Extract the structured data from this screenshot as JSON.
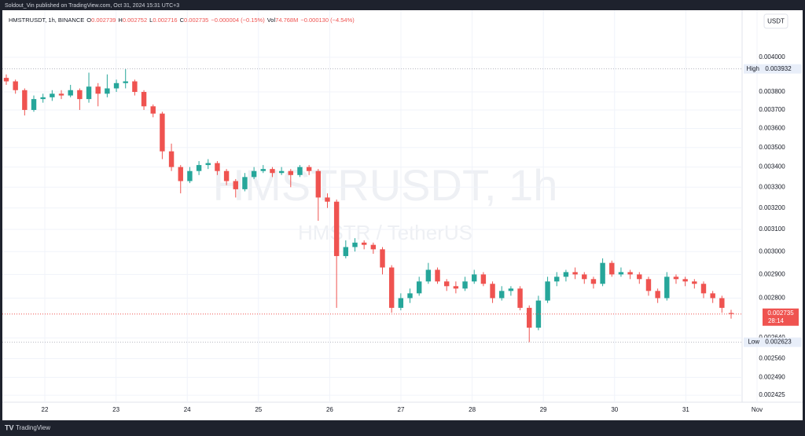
{
  "header": {
    "publisher": "Soldout_Vin published on TradingView.com, Oct 31, 2024 15:31 UTC+3",
    "currency_button": "USDT",
    "footer_logo": "TradingView"
  },
  "chart_data": {
    "type": "candlestick",
    "legend": {
      "symbol": "HMSTRUSDT, 1h, BINANCE",
      "items": [
        {
          "key": "O",
          "value": "0.002739"
        },
        {
          "key": "H",
          "value": "0.002752"
        },
        {
          "key": "L",
          "value": "0.002716"
        },
        {
          "key": "C",
          "value": "0.002735"
        }
      ],
      "change": "−0.000004 (−0.15%)",
      "volume_key": "Vol",
      "volume": "74.768M",
      "volume_change": "−0.000130 (−4.54%)"
    },
    "watermark": {
      "title": "HMSTRUSDT, 1h",
      "subtitle": "HMSTR / TetherUS"
    },
    "up_color": "#26a69a",
    "down_color": "#ef5350",
    "log_scale": true,
    "grid": true,
    "ylim": [
      0.0024,
      0.0042
    ],
    "yticks": [
      {
        "value": 0.004,
        "label": "0.004000"
      },
      {
        "value": 0.0038,
        "label": "0.003800"
      },
      {
        "value": 0.0037,
        "label": "0.003700"
      },
      {
        "value": 0.0036,
        "label": "0.003600"
      },
      {
        "value": 0.0035,
        "label": "0.003500"
      },
      {
        "value": 0.0034,
        "label": "0.003400"
      },
      {
        "value": 0.0033,
        "label": "0.003300"
      },
      {
        "value": 0.0032,
        "label": "0.003200"
      },
      {
        "value": 0.0031,
        "label": "0.003100"
      },
      {
        "value": 0.003,
        "label": "0.003000"
      },
      {
        "value": 0.0029,
        "label": "0.002900"
      },
      {
        "value": 0.0028,
        "label": "0.002800"
      },
      {
        "value": 0.00264,
        "label": "0.002640"
      },
      {
        "value": 0.00256,
        "label": "0.002560"
      },
      {
        "value": 0.00249,
        "label": "0.002490"
      },
      {
        "value": 0.002425,
        "label": "0.002425"
      }
    ],
    "xtick_labels": [
      "22",
      "23",
      "24",
      "25",
      "26",
      "27",
      "28",
      "29",
      "30",
      "31",
      "Nov"
    ],
    "high": {
      "name": "High",
      "value": 0.003932,
      "label": "0.003932"
    },
    "low": {
      "name": "Low",
      "value": 0.002623,
      "label": "0.002623"
    },
    "last": {
      "value": 0.002735,
      "label": "0.002735",
      "countdown": "28:14"
    },
    "ohlc": [
      [
        0.00388,
        0.0039,
        0.00384,
        0.00386
      ],
      [
        0.00386,
        0.00387,
        0.00379,
        0.00381
      ],
      [
        0.00381,
        0.00382,
        0.00367,
        0.0037
      ],
      [
        0.0037,
        0.00378,
        0.00369,
        0.00376
      ],
      [
        0.00376,
        0.00379,
        0.00374,
        0.00377
      ],
      [
        0.00377,
        0.00381,
        0.00375,
        0.00379
      ],
      [
        0.00379,
        0.00381,
        0.00376,
        0.00378
      ],
      [
        0.00378,
        0.00384,
        0.00377,
        0.00381
      ],
      [
        0.00381,
        0.00382,
        0.0037,
        0.00376
      ],
      [
        0.00376,
        0.00391,
        0.00374,
        0.00383
      ],
      [
        0.00383,
        0.00385,
        0.00372,
        0.00379
      ],
      [
        0.00379,
        0.0039,
        0.00377,
        0.00382
      ],
      [
        0.00382,
        0.00387,
        0.0038,
        0.00385
      ],
      [
        0.00385,
        0.003932,
        0.00382,
        0.00386
      ],
      [
        0.00386,
        0.00387,
        0.00378,
        0.0038
      ],
      [
        0.0038,
        0.00381,
        0.0037,
        0.00372
      ],
      [
        0.00372,
        0.00373,
        0.00366,
        0.00368
      ],
      [
        0.00368,
        0.00369,
        0.00344,
        0.00348
      ],
      [
        0.00348,
        0.00352,
        0.00338,
        0.0034
      ],
      [
        0.0034,
        0.00341,
        0.00327,
        0.00333
      ],
      [
        0.00333,
        0.0034,
        0.00332,
        0.00338
      ],
      [
        0.00338,
        0.00343,
        0.00336,
        0.00341
      ],
      [
        0.00341,
        0.00344,
        0.00339,
        0.00342
      ],
      [
        0.00342,
        0.00343,
        0.00336,
        0.00338
      ],
      [
        0.00338,
        0.00339,
        0.00331,
        0.00333
      ],
      [
        0.00333,
        0.00334,
        0.00325,
        0.00329
      ],
      [
        0.00329,
        0.00337,
        0.00328,
        0.00335
      ],
      [
        0.00335,
        0.0034,
        0.00334,
        0.00338
      ],
      [
        0.00338,
        0.00341,
        0.00337,
        0.00339
      ],
      [
        0.00339,
        0.0034,
        0.00335,
        0.00337
      ],
      [
        0.00337,
        0.0034,
        0.00336,
        0.00338
      ],
      [
        0.00338,
        0.00339,
        0.0033,
        0.00336
      ],
      [
        0.00336,
        0.00341,
        0.00335,
        0.0034
      ],
      [
        0.0034,
        0.00341,
        0.00336,
        0.00338
      ],
      [
        0.00338,
        0.00339,
        0.00314,
        0.00325
      ],
      [
        0.00325,
        0.00327,
        0.0032,
        0.00323
      ],
      [
        0.00323,
        0.00324,
        0.00276,
        0.00298
      ],
      [
        0.00298,
        0.00305,
        0.00297,
        0.00302
      ],
      [
        0.00302,
        0.00306,
        0.003,
        0.00304
      ],
      [
        0.00304,
        0.00305,
        0.00301,
        0.00303
      ],
      [
        0.00303,
        0.00304,
        0.00299,
        0.00301
      ],
      [
        0.00301,
        0.00302,
        0.0029,
        0.00293
      ],
      [
        0.00293,
        0.00294,
        0.00274,
        0.00276
      ],
      [
        0.00276,
        0.00282,
        0.00275,
        0.0028
      ],
      [
        0.0028,
        0.00284,
        0.00278,
        0.00282
      ],
      [
        0.00282,
        0.00289,
        0.00281,
        0.00287
      ],
      [
        0.00287,
        0.00295,
        0.00286,
        0.00292
      ],
      [
        0.00292,
        0.00293,
        0.00286,
        0.00287
      ],
      [
        0.00287,
        0.00288,
        0.00283,
        0.00285
      ],
      [
        0.00285,
        0.00287,
        0.00282,
        0.00284
      ],
      [
        0.00284,
        0.00289,
        0.00283,
        0.00287
      ],
      [
        0.00287,
        0.00292,
        0.00286,
        0.0029
      ],
      [
        0.0029,
        0.00291,
        0.00285,
        0.00286
      ],
      [
        0.00286,
        0.00287,
        0.00278,
        0.0028
      ],
      [
        0.0028,
        0.00285,
        0.00279,
        0.00283
      ],
      [
        0.00283,
        0.00285,
        0.00281,
        0.00284
      ],
      [
        0.00284,
        0.00285,
        0.00275,
        0.00276
      ],
      [
        0.00276,
        0.00277,
        0.002623,
        0.00268
      ],
      [
        0.00268,
        0.00281,
        0.00267,
        0.00279
      ],
      [
        0.00279,
        0.00289,
        0.00278,
        0.00287
      ],
      [
        0.00287,
        0.00291,
        0.00285,
        0.00289
      ],
      [
        0.00289,
        0.00292,
        0.00287,
        0.00291
      ],
      [
        0.00291,
        0.00293,
        0.00288,
        0.0029
      ],
      [
        0.0029,
        0.00291,
        0.00286,
        0.00288
      ],
      [
        0.00288,
        0.00289,
        0.00284,
        0.00286
      ],
      [
        0.00286,
        0.00297,
        0.00285,
        0.00295
      ],
      [
        0.00295,
        0.00296,
        0.00289,
        0.0029
      ],
      [
        0.0029,
        0.00293,
        0.00289,
        0.00291
      ],
      [
        0.00291,
        0.00292,
        0.00288,
        0.0029
      ],
      [
        0.0029,
        0.00291,
        0.00286,
        0.00288
      ],
      [
        0.00288,
        0.00289,
        0.00281,
        0.00283
      ],
      [
        0.00283,
        0.00284,
        0.00278,
        0.0028
      ],
      [
        0.0028,
        0.00291,
        0.00279,
        0.00289
      ],
      [
        0.00289,
        0.0029,
        0.00286,
        0.00288
      ],
      [
        0.00288,
        0.00289,
        0.00285,
        0.00287
      ],
      [
        0.00287,
        0.00288,
        0.00284,
        0.00286
      ],
      [
        0.00286,
        0.00287,
        0.0028,
        0.00282
      ],
      [
        0.00282,
        0.00283,
        0.00278,
        0.0028
      ],
      [
        0.0028,
        0.00281,
        0.00274,
        0.00276
      ],
      [
        0.002739,
        0.002752,
        0.002716,
        0.002735
      ]
    ]
  }
}
